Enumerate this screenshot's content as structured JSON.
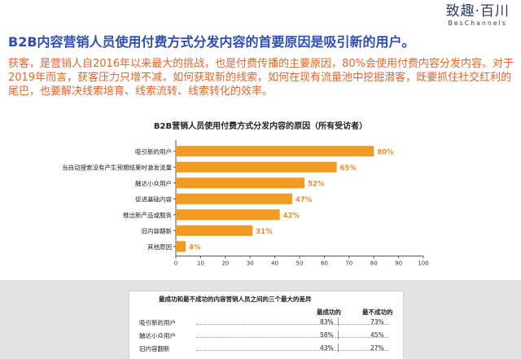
{
  "brand": {
    "name_cn": "致趣·百川",
    "name_en": "BesChannels"
  },
  "headline": "B2B内容营销人员使用付费方式分发内容的首要原因是吸引新的用户。",
  "summary": "获客，是营销人自2016年以来最大的挑战，也是付费传播的主要原因，80%会使用付费内容分发内容。对于2019年而言，获客压力只增不减，如何获取新的线索，如何在现有流量池中挖掘潜客，既要抓住社交红利的尾巴，也要解决线索培育、线索流转、线索转化的效率。",
  "chart_data": {
    "type": "bar",
    "orientation": "horizontal",
    "title": "B2B营销人员使用付费方式分发内容的原因（所有受访者）",
    "categories": [
      "吸引新的用户",
      "当自动搜索没有产生预期结果时激发流量",
      "触达小众用户",
      "促进基础内容",
      "推出新产品或服务",
      "旧内容翻新",
      "其他原因"
    ],
    "values": [
      80,
      65,
      52,
      47,
      42,
      31,
      4
    ],
    "value_labels": [
      "80%",
      "65%",
      "52%",
      "47%",
      "42%",
      "31%",
      "4%"
    ],
    "xlim": [
      0,
      100
    ],
    "xticks": [
      "0",
      "10",
      "20",
      "30",
      "40",
      "50",
      "60",
      "70",
      "80",
      "90",
      "100"
    ],
    "bar_color": "#f29a22",
    "label_color": "#e8902a",
    "grid": false
  },
  "differences": {
    "title": "最成功和最不成功的内容营销人员之间的三个最大的差异",
    "col_most": "最成功的",
    "col_least": "最不成功的",
    "rows": [
      {
        "label": "吸引新的用户",
        "most": "83%",
        "least": "73%"
      },
      {
        "label": "触达小众用户",
        "most": "58%",
        "least": "45%"
      },
      {
        "label": "旧内容翻新",
        "most": "43%",
        "least": "27%"
      }
    ]
  }
}
